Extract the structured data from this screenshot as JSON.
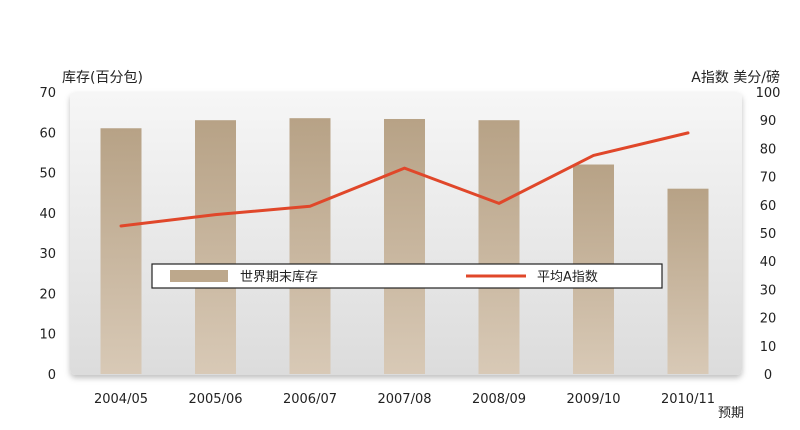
{
  "chart_data": {
    "type": "bar",
    "categories": [
      "2004/05",
      "2005/06",
      "2006/07",
      "2007/08",
      "2008/09",
      "2009/10",
      "2010/11"
    ],
    "x_note": "预期",
    "y_left": {
      "label": "库存(百分包)",
      "range": [
        0,
        70
      ],
      "ticks": [
        0,
        10,
        20,
        30,
        40,
        50,
        60,
        70
      ]
    },
    "y_right": {
      "label": "A指数 美分/磅",
      "range": [
        0,
        100
      ],
      "ticks": [
        0,
        10,
        20,
        30,
        40,
        50,
        60,
        70,
        80,
        90,
        100
      ]
    },
    "series": [
      {
        "name": "世界期末库存",
        "type": "bar",
        "axis": "left",
        "color": "#bda88c",
        "values": [
          61,
          63,
          63.5,
          63.3,
          63,
          52,
          46
        ]
      },
      {
        "name": "平均A指数",
        "type": "line",
        "axis": "right",
        "color": "#e0472a",
        "values": [
          52.5,
          56.5,
          59.5,
          73,
          60.5,
          77.5,
          85.5
        ]
      }
    ],
    "legend_placement": "middle",
    "grid": false
  }
}
